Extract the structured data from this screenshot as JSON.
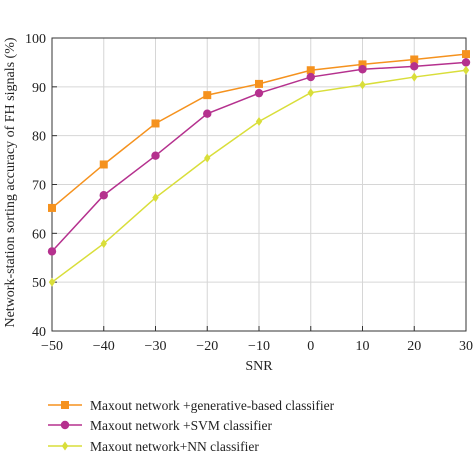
{
  "chart_data": {
    "type": "line",
    "xlabel": "SNR",
    "ylabel": "Network-station sorting accuracy of FH signals (%)",
    "x": [
      -50,
      -40,
      -30,
      -20,
      -10,
      0,
      10,
      20,
      30
    ],
    "xlim": [
      -50,
      30
    ],
    "ylim": [
      40,
      100
    ],
    "xticks": [
      "−50",
      "−40",
      "−30",
      "−20",
      "−10",
      "0",
      "10",
      "20",
      "30"
    ],
    "yticks": [
      "40",
      "50",
      "60",
      "70",
      "80",
      "90",
      "100"
    ],
    "grid": true,
    "legend_position": "bottom",
    "series": [
      {
        "name": "Maxout network +generative-based classifier",
        "color": "#F5921E",
        "marker": "square",
        "values": [
          65.2,
          74.1,
          82.5,
          88.3,
          90.6,
          93.4,
          94.6,
          95.6,
          96.7
        ]
      },
      {
        "name": "Maxout network +SVM classifier",
        "color": "#B5318E",
        "marker": "circle",
        "values": [
          56.3,
          67.8,
          75.9,
          84.5,
          88.7,
          92.0,
          93.6,
          94.2,
          95.0
        ]
      },
      {
        "name": "Maxout network+NN classifier",
        "color": "#D9DE3A",
        "marker": "diamond",
        "values": [
          50.0,
          57.9,
          67.3,
          75.4,
          82.9,
          88.8,
          90.4,
          92.0,
          93.4
        ]
      }
    ]
  }
}
